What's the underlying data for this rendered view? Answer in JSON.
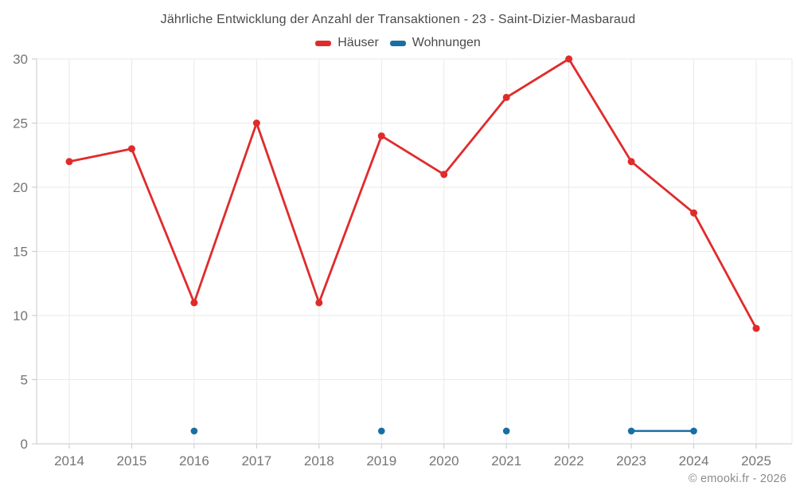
{
  "header": {
    "title": "Jährliche Entwicklung der Anzahl der Transaktionen - 23 - Saint-Dizier-Masbaraud"
  },
  "footer": {
    "text": "© emooki.fr - 2026"
  },
  "colors": {
    "hauser_red": "#e02b2b",
    "wohnungen_blue": "#196fa3",
    "gridline": "#e9e9e9",
    "axis": "#c9c9c9",
    "tick_text": "#757575",
    "title_text": "#4a4a4a",
    "legend_text": "#4a4a4a",
    "footer_text": "#8c8c8c"
  },
  "chart_data": {
    "type": "line",
    "title": "Jährliche Entwicklung der Anzahl der Transaktionen - 23 - Saint-Dizier-Masbaraud",
    "categories": [
      "2014",
      "2015",
      "2016",
      "2017",
      "2018",
      "2019",
      "2020",
      "2021",
      "2022",
      "2023",
      "2024",
      "2025"
    ],
    "series": [
      {
        "name": "Häuser",
        "color": "#e02b2b",
        "values": [
          22,
          23,
          11,
          25,
          11,
          24,
          21,
          27,
          30,
          22,
          18,
          9
        ]
      },
      {
        "name": "Wohnungen",
        "color": "#196fa3",
        "values": [
          null,
          null,
          1,
          null,
          null,
          1,
          null,
          1,
          null,
          1,
          1,
          null
        ]
      }
    ],
    "xlabel": "",
    "ylabel": "",
    "ylim": [
      0,
      30
    ],
    "yticks": [
      0,
      5,
      10,
      15,
      20,
      25,
      30
    ],
    "grid": true,
    "legend_position": "top"
  }
}
